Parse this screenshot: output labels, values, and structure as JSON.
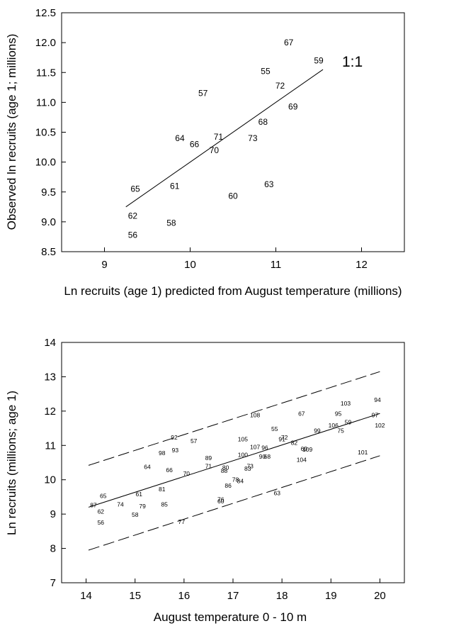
{
  "chart_data": [
    {
      "type": "scatter",
      "title": "",
      "xlabel": "Ln recruits (age 1) predicted from August temperature (millions)",
      "ylabel": "Observed ln recruits (age 1; millions)",
      "xlim": [
        8.5,
        12.5
      ],
      "ylim": [
        8.5,
        12.5
      ],
      "xticks": [
        9,
        10,
        11,
        12
      ],
      "yticks": [
        8.5,
        9.0,
        9.5,
        10.0,
        10.5,
        11.0,
        11.5,
        12.0,
        12.5
      ],
      "ytick_labels": [
        "8.5",
        "9.0",
        "9.5",
        "10.0",
        "10.5",
        "11.0",
        "11.5",
        "12.0",
        "12.5"
      ],
      "grid": false,
      "annotation": "1:1",
      "line": {
        "x": [
          9.25,
          11.55
        ],
        "y": [
          9.25,
          11.55
        ],
        "style": "solid"
      },
      "points": [
        {
          "label": "67",
          "x": 11.15,
          "y": 12.0
        },
        {
          "label": "59",
          "x": 11.5,
          "y": 11.7
        },
        {
          "label": "55",
          "x": 10.88,
          "y": 11.52
        },
        {
          "label": "72",
          "x": 11.05,
          "y": 11.28
        },
        {
          "label": "57",
          "x": 10.15,
          "y": 11.15
        },
        {
          "label": "69",
          "x": 11.2,
          "y": 10.93
        },
        {
          "label": "68",
          "x": 10.85,
          "y": 10.67
        },
        {
          "label": "64",
          "x": 9.88,
          "y": 10.4
        },
        {
          "label": "71",
          "x": 10.33,
          "y": 10.42
        },
        {
          "label": "73",
          "x": 10.73,
          "y": 10.4
        },
        {
          "label": "66",
          "x": 10.05,
          "y": 10.3
        },
        {
          "label": "70",
          "x": 10.28,
          "y": 10.2
        },
        {
          "label": "65",
          "x": 9.36,
          "y": 9.55
        },
        {
          "label": "61",
          "x": 9.82,
          "y": 9.6
        },
        {
          "label": "63",
          "x": 10.92,
          "y": 9.63
        },
        {
          "label": "60",
          "x": 10.5,
          "y": 9.43
        },
        {
          "label": "62",
          "x": 9.33,
          "y": 9.1
        },
        {
          "label": "58",
          "x": 9.78,
          "y": 8.98
        },
        {
          "label": "56",
          "x": 9.33,
          "y": 8.78
        }
      ]
    },
    {
      "type": "scatter",
      "title": "",
      "xlabel": "August temperature 0 - 10 m",
      "ylabel": "Ln recruits (millions; age 1)",
      "xlim": [
        13.5,
        20.5
      ],
      "ylim": [
        7,
        14
      ],
      "xticks": [
        14,
        15,
        16,
        17,
        18,
        19,
        20
      ],
      "yticks": [
        7,
        8,
        9,
        10,
        11,
        12,
        13,
        14
      ],
      "ytick_labels": [
        "7",
        "8",
        "9",
        "10",
        "11",
        "12",
        "13",
        "14"
      ],
      "grid": false,
      "lines": [
        {
          "name": "",
          "style": "solid",
          "x": [
            14.05,
            20.0
          ],
          "y": [
            9.2,
            11.93
          ]
        },
        {
          "name": "",
          "style": "dashed",
          "x": [
            14.05,
            20.0
          ],
          "y": [
            10.42,
            13.15
          ]
        },
        {
          "name": "",
          "style": "dashed",
          "x": [
            14.05,
            20.0
          ],
          "y": [
            7.95,
            10.7
          ]
        }
      ],
      "points": [
        {
          "label": "94",
          "x": 19.95,
          "y": 12.35
        },
        {
          "label": "103",
          "x": 19.3,
          "y": 12.25
        },
        {
          "label": "108",
          "x": 17.45,
          "y": 11.9
        },
        {
          "label": "67",
          "x": 18.4,
          "y": 11.95
        },
        {
          "label": "95",
          "x": 19.15,
          "y": 11.95
        },
        {
          "label": "97",
          "x": 19.9,
          "y": 11.9
        },
        {
          "label": "59",
          "x": 19.35,
          "y": 11.7
        },
        {
          "label": "106",
          "x": 19.05,
          "y": 11.6
        },
        {
          "label": "102",
          "x": 20.0,
          "y": 11.6
        },
        {
          "label": "55",
          "x": 17.85,
          "y": 11.5
        },
        {
          "label": "99",
          "x": 18.72,
          "y": 11.45
        },
        {
          "label": "75",
          "x": 19.2,
          "y": 11.45
        },
        {
          "label": "92",
          "x": 15.8,
          "y": 11.25
        },
        {
          "label": "72",
          "x": 18.05,
          "y": 11.25
        },
        {
          "label": "105",
          "x": 17.2,
          "y": 11.2
        },
        {
          "label": "91",
          "x": 18.0,
          "y": 11.2
        },
        {
          "label": "57",
          "x": 16.2,
          "y": 11.15
        },
        {
          "label": "82",
          "x": 18.25,
          "y": 11.1
        },
        {
          "label": "107",
          "x": 17.45,
          "y": 10.98
        },
        {
          "label": "96",
          "x": 17.65,
          "y": 10.95
        },
        {
          "label": "98",
          "x": 15.55,
          "y": 10.8
        },
        {
          "label": "93",
          "x": 15.82,
          "y": 10.88
        },
        {
          "label": "69",
          "x": 18.45,
          "y": 10.92
        },
        {
          "label": "109",
          "x": 18.52,
          "y": 10.9
        },
        {
          "label": "101",
          "x": 19.65,
          "y": 10.82
        },
        {
          "label": "100",
          "x": 17.2,
          "y": 10.75
        },
        {
          "label": "90",
          "x": 17.6,
          "y": 10.7
        },
        {
          "label": "68",
          "x": 17.7,
          "y": 10.7
        },
        {
          "label": "89",
          "x": 16.5,
          "y": 10.65
        },
        {
          "label": "104",
          "x": 18.4,
          "y": 10.6
        },
        {
          "label": "64",
          "x": 15.25,
          "y": 10.4
        },
        {
          "label": "71",
          "x": 16.5,
          "y": 10.42
        },
        {
          "label": "80",
          "x": 16.85,
          "y": 10.38
        },
        {
          "label": "73",
          "x": 17.35,
          "y": 10.42
        },
        {
          "label": "83",
          "x": 17.3,
          "y": 10.35
        },
        {
          "label": "66",
          "x": 15.7,
          "y": 10.3
        },
        {
          "label": "88",
          "x": 16.82,
          "y": 10.28
        },
        {
          "label": "70",
          "x": 16.05,
          "y": 10.2
        },
        {
          "label": "78",
          "x": 17.05,
          "y": 10.02
        },
        {
          "label": "84",
          "x": 17.15,
          "y": 9.98
        },
        {
          "label": "86",
          "x": 16.9,
          "y": 9.85
        },
        {
          "label": "65",
          "x": 14.35,
          "y": 9.55
        },
        {
          "label": "81",
          "x": 15.55,
          "y": 9.75
        },
        {
          "label": "61",
          "x": 15.08,
          "y": 9.6
        },
        {
          "label": "63",
          "x": 17.9,
          "y": 9.63
        },
        {
          "label": "76",
          "x": 16.75,
          "y": 9.45
        },
        {
          "label": "60",
          "x": 16.75,
          "y": 9.4
        },
        {
          "label": "74",
          "x": 14.7,
          "y": 9.3
        },
        {
          "label": "87",
          "x": 14.15,
          "y": 9.28
        },
        {
          "label": "85",
          "x": 15.6,
          "y": 9.3
        },
        {
          "label": "79",
          "x": 15.15,
          "y": 9.25
        },
        {
          "label": "62",
          "x": 14.3,
          "y": 9.1
        },
        {
          "label": "58",
          "x": 15.0,
          "y": 9.0
        },
        {
          "label": "56",
          "x": 14.3,
          "y": 8.78
        },
        {
          "label": "77",
          "x": 15.95,
          "y": 8.8
        }
      ]
    }
  ]
}
